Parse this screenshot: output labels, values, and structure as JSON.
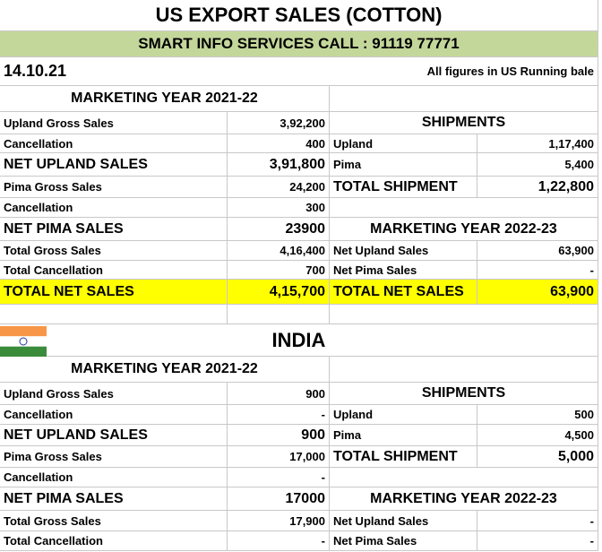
{
  "header": {
    "title": "US EXPORT SALES (COTTON)",
    "subtitle": "SMART INFO SERVICES CALL : 91119 77771",
    "date": "14.10.21",
    "note": "All figures in US Running bale"
  },
  "us": {
    "year_heading": "MARKETING YEAR 2021-22",
    "rows": [
      {
        "left": [
          "Upland Gross Sales",
          "3,92,200"
        ],
        "right": [
          "SHIPMENTS"
        ]
      },
      {
        "left": [
          "Cancellation",
          "400"
        ],
        "right": [
          "Upland",
          "1,17,400"
        ]
      },
      {
        "left": [
          "NET UPLAND SALES",
          "3,91,800"
        ],
        "right": [
          "Pima",
          "5,400"
        ]
      },
      {
        "left": [
          "Pima Gross Sales",
          "24,200"
        ],
        "right": [
          "TOTAL SHIPMENT",
          "1,22,800"
        ]
      },
      {
        "left": [
          "Cancellation",
          "300"
        ]
      },
      {
        "left": [
          "NET PIMA SALES",
          "23900"
        ],
        "right": [
          "MARKETING YEAR 2022-23"
        ]
      },
      {
        "left": [
          "Total Gross Sales",
          "4,16,400"
        ],
        "right": [
          "Net Upland Sales",
          "63,900"
        ]
      },
      {
        "left": [
          "Total Cancellation",
          "700"
        ],
        "right": [
          "Net Pima Sales",
          "-"
        ]
      },
      {
        "left": [
          "TOTAL NET SALES",
          "4,15,700"
        ],
        "right": [
          "TOTAL NET SALES",
          "63,900"
        ]
      }
    ]
  },
  "india": {
    "title": "INDIA",
    "year_heading": "MARKETING YEAR 2021-22",
    "rows": [
      {
        "left": [
          "Upland Gross Sales",
          "900"
        ],
        "right": [
          "SHIPMENTS"
        ]
      },
      {
        "left": [
          "Cancellation",
          "-"
        ],
        "right": [
          "Upland",
          "500"
        ]
      },
      {
        "left": [
          "NET UPLAND SALES",
          "900"
        ],
        "right": [
          "Pima",
          "4,500"
        ]
      },
      {
        "left": [
          "Pima Gross Sales",
          "17,000"
        ],
        "right": [
          "TOTAL SHIPMENT",
          "5,000"
        ]
      },
      {
        "left": [
          "Cancellation",
          "-"
        ]
      },
      {
        "left": [
          "NET PIMA SALES",
          "17000"
        ],
        "right": [
          "MARKETING YEAR 2022-23"
        ]
      },
      {
        "left": [
          "Total Gross Sales",
          "17,900"
        ],
        "right": [
          "Net Upland Sales",
          "-"
        ]
      },
      {
        "left": [
          "Total Cancellation",
          "-"
        ],
        "right": [
          "Net Pima Sales",
          "-"
        ]
      }
    ]
  }
}
